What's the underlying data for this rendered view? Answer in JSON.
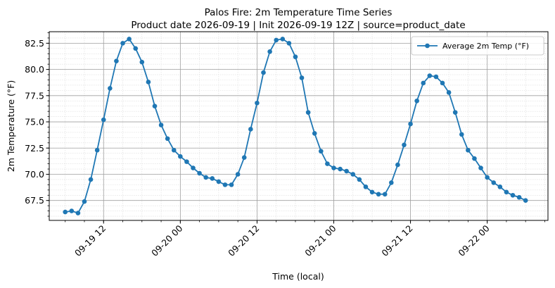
{
  "chart_data": {
    "type": "line",
    "title": "Palos Fire: 2m Temperature Time Series",
    "subtitle": "Product date 2026-09-19 | Init 2026-09-19 12Z | source=product_date",
    "xlabel": "Time (local)",
    "ylabel": "2m Temperature (°F)",
    "x_axis": {
      "type": "datetime",
      "range": [
        "2026-09-19 03:30",
        "2026-09-22 09:30"
      ],
      "ticks": [
        {
          "t": "2026-09-19 12:00",
          "label": "09-19 12"
        },
        {
          "t": "2026-09-20 00:00",
          "label": "09-20 00"
        },
        {
          "t": "2026-09-20 12:00",
          "label": "09-20 12"
        },
        {
          "t": "2026-09-21 00:00",
          "label": "09-21 00"
        },
        {
          "t": "2026-09-21 12:00",
          "label": "09-21 12"
        },
        {
          "t": "2026-09-22 00:00",
          "label": "09-22 00"
        }
      ]
    },
    "y_axis": {
      "range": [
        65.6,
        83.6
      ],
      "ticks": [
        67.5,
        70.0,
        72.5,
        75.0,
        77.5,
        80.0,
        82.5
      ],
      "tick_labels": [
        "67.5",
        "70.0",
        "72.5",
        "75.0",
        "77.5",
        "80.0",
        "82.5"
      ]
    },
    "grid": {
      "major": true,
      "minor": true
    },
    "legend": {
      "position": "top-right"
    },
    "colors": {
      "series": "#1f77b4",
      "major_grid": "#a0a0a0",
      "minor_grid": "#dcdcdc"
    },
    "series": [
      {
        "name": "Average 2m Temp (°F)",
        "start": "2026-09-19 06:00",
        "step_hours": 1,
        "values": [
          66.4,
          66.5,
          66.3,
          67.4,
          69.5,
          72.3,
          75.2,
          78.2,
          80.8,
          82.5,
          82.9,
          82.0,
          80.7,
          78.8,
          76.5,
          74.7,
          73.4,
          72.3,
          71.7,
          71.2,
          70.6,
          70.1,
          69.7,
          69.6,
          69.3,
          69.0,
          69.0,
          70.0,
          71.6,
          74.3,
          76.8,
          79.7,
          81.7,
          82.8,
          82.9,
          82.5,
          81.2,
          79.2,
          75.9,
          73.9,
          72.2,
          71.0,
          70.6,
          70.5,
          70.3,
          70.0,
          69.5,
          68.8,
          68.3,
          68.1,
          68.1,
          69.2,
          70.9,
          72.8,
          74.8,
          77.0,
          78.7,
          79.4,
          79.3,
          78.7,
          77.8,
          75.9,
          73.8,
          72.3,
          71.5,
          70.6,
          69.7,
          69.2,
          68.8,
          68.3,
          68.0,
          67.8,
          67.5
        ]
      }
    ]
  }
}
